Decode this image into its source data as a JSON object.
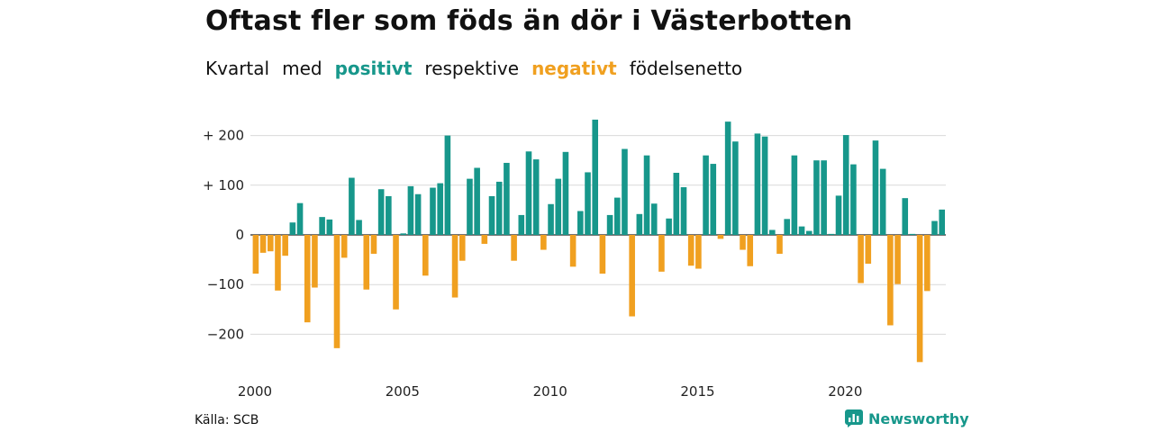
{
  "title": "Oftast fler som föds än dör i Västerbotten",
  "subtitle": {
    "part1": "Kvartal",
    "part2": "med",
    "positive": "positivt",
    "part3": "respektive",
    "negative": "negativt",
    "part4": "födelsenetto"
  },
  "source": "Källa: SCB",
  "brand": "Newsworthy",
  "colors": {
    "positive": "#17978b",
    "negative": "#f0a020",
    "grid": "#d9d9d9"
  },
  "chart_data": {
    "type": "bar",
    "x_start": 2000,
    "x_step": 0.25,
    "xticks": [
      2000,
      2005,
      2010,
      2015,
      2020
    ],
    "ylim": [
      -270,
      240
    ],
    "yticks": [
      {
        "value": 200,
        "label": "+ 200"
      },
      {
        "value": 100,
        "label": "+ 100"
      },
      {
        "value": 0,
        "label": "0"
      },
      {
        "value": -100,
        "label": "−100"
      },
      {
        "value": -200,
        "label": "−200"
      }
    ],
    "values": [
      -78,
      -36,
      -33,
      -112,
      -42,
      25,
      64,
      -176,
      -106,
      36,
      31,
      -228,
      -46,
      115,
      30,
      -110,
      -38,
      92,
      78,
      -150,
      3,
      98,
      82,
      -82,
      95,
      104,
      200,
      -126,
      -52,
      113,
      135,
      -18,
      78,
      107,
      145,
      -52,
      40,
      168,
      152,
      -30,
      62,
      113,
      167,
      -64,
      48,
      126,
      232,
      -78,
      40,
      75,
      173,
      -164,
      42,
      160,
      63,
      -74,
      33,
      125,
      96,
      -62,
      -68,
      160,
      143,
      -8,
      228,
      188,
      -30,
      -63,
      204,
      198,
      10,
      -38,
      32,
      160,
      17,
      8,
      150,
      150,
      2,
      79,
      201,
      142,
      -97,
      -58,
      190,
      133,
      -182,
      -99,
      74,
      2,
      -256,
      -113,
      28,
      51
    ]
  }
}
